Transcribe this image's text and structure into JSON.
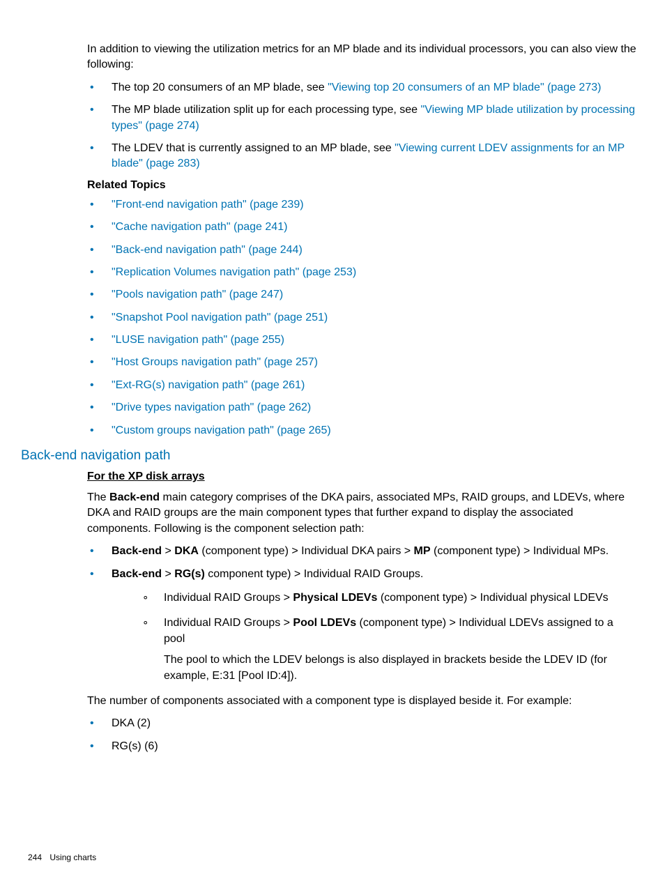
{
  "intro": "In addition to viewing the utilization metrics for an MP blade and its individual processors, you can also view the following:",
  "additionList": [
    {
      "pre": "The top 20 consumers of an MP blade, see ",
      "link": "\"Viewing top 20 consumers of an MP blade\" (page 273)"
    },
    {
      "pre": "The MP blade utilization split up for each processing type, see ",
      "link": "\"Viewing MP blade utilization by processing types\" (page 274)"
    },
    {
      "pre": "The LDEV that is currently assigned to an MP blade, see ",
      "link": "\"Viewing current LDEV assignments for an MP blade\" (page 283)"
    }
  ],
  "relatedHeading": "Related Topics",
  "relatedLinks": [
    "\"Front-end navigation path\" (page 239)",
    "\"Cache navigation path\" (page 241)",
    "\"Back-end navigation path\" (page 244)",
    "\"Replication Volumes navigation path\" (page 253)",
    "\"Pools navigation path\" (page 247)",
    "\"Snapshot Pool navigation path\" (page 251)",
    "\"LUSE navigation path\" (page 255)",
    "\"Host Groups navigation path\" (page 257)",
    "\"Ext-RG(s) navigation path\" (page 261)",
    "\"Drive types navigation path\" (page 262)",
    "\"Custom groups navigation path\" (page 265)"
  ],
  "sectionTitle": "Back-end navigation path",
  "subTitle": "For the XP disk arrays",
  "backendParaSegs": [
    {
      "t": "The "
    },
    {
      "t": "Back-end",
      "b": true
    },
    {
      "t": " main category comprises of the DKA pairs, associated MPs, RAID groups, and LDEVs, where DKA and RAID groups are the main component types that further expand to display the associated components. Following is the component selection path:"
    }
  ],
  "pathList": [
    {
      "segs": [
        {
          "t": "Back-end",
          "b": true
        },
        {
          "t": " > "
        },
        {
          "t": "DKA",
          "b": true
        },
        {
          "t": " (component type) > Individual DKA pairs > "
        },
        {
          "t": "MP",
          "b": true
        },
        {
          "t": " (component type) > Individual MPs."
        }
      ]
    },
    {
      "segs": [
        {
          "t": "Back-end",
          "b": true
        },
        {
          "t": " > "
        },
        {
          "t": "RG(s)",
          "b": true
        },
        {
          "t": " component type) > Individual RAID Groups."
        }
      ],
      "sub": [
        {
          "segs": [
            {
              "t": "Individual RAID Groups > "
            },
            {
              "t": "Physical LDEVs",
              "b": true
            },
            {
              "t": " (component type) > Individual physical LDEVs"
            }
          ]
        },
        {
          "segs": [
            {
              "t": "Individual RAID Groups > "
            },
            {
              "t": "Pool LDEVs",
              "b": true
            },
            {
              "t": " (component type) > Individual LDEVs assigned to a pool"
            }
          ],
          "note": "The pool to which the LDEV belongs is also displayed in brackets beside the LDEV ID (for example, E:31 [Pool ID:4])."
        }
      ]
    }
  ],
  "examplePara": "The number of components associated with a component type is displayed beside it. For example:",
  "exampleList": [
    "DKA (2)",
    "RG(s) (6)"
  ],
  "footer": {
    "page": "244",
    "section": "Using charts"
  }
}
